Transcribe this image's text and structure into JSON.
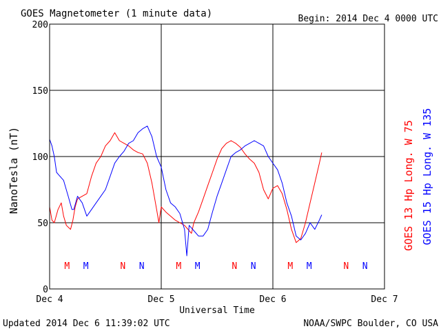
{
  "chart_data": {
    "type": "line",
    "title": "GOES Magnetometer (1 minute data)",
    "begin_label": "Begin:  2014 Dec 4 0000 UTC",
    "xlabel": "Universal Time",
    "ylabel": "NanoTesla (nT)",
    "footer_left": "Updated 2014 Dec  6 11:39:02 UTC",
    "footer_right": "NOAA/SWPC Boulder, CO USA",
    "xlim": [
      0,
      72
    ],
    "ylim": [
      0,
      200
    ],
    "x_unit": "hours since 2014 Dec 4 0000 UTC",
    "x_ticks": [
      {
        "x": 0,
        "label": "Dec 4"
      },
      {
        "x": 24,
        "label": "Dec 5"
      },
      {
        "x": 48,
        "label": "Dec 6"
      },
      {
        "x": 72,
        "label": "Dec 7"
      }
    ],
    "y_ticks": [
      0,
      50,
      100,
      150,
      200
    ],
    "grid": true,
    "series": [
      {
        "name": "GOES 13 Hp  Long. W 75",
        "color": "#ff0000",
        "points": [
          [
            0,
            62
          ],
          [
            0.5,
            52
          ],
          [
            1,
            50
          ],
          [
            1.8,
            60
          ],
          [
            2.5,
            65
          ],
          [
            3,
            55
          ],
          [
            3.6,
            48
          ],
          [
            4.5,
            45
          ],
          [
            5,
            52
          ],
          [
            5.5,
            62
          ],
          [
            6,
            68
          ],
          [
            7,
            70
          ],
          [
            8,
            72
          ],
          [
            9,
            85
          ],
          [
            10,
            95
          ],
          [
            11,
            100
          ],
          [
            12,
            108
          ],
          [
            13,
            112
          ],
          [
            14,
            118
          ],
          [
            15,
            112
          ],
          [
            16,
            110
          ],
          [
            17,
            108
          ],
          [
            18,
            105
          ],
          [
            19,
            103
          ],
          [
            20,
            102
          ],
          [
            21,
            95
          ],
          [
            22,
            80
          ],
          [
            23,
            60
          ],
          [
            23.5,
            50
          ],
          [
            24,
            62
          ],
          [
            25,
            58
          ],
          [
            26,
            55
          ],
          [
            27,
            52
          ],
          [
            28,
            50
          ],
          [
            29,
            48
          ],
          [
            30,
            44
          ],
          [
            30.5,
            42
          ],
          [
            31,
            50
          ],
          [
            32,
            58
          ],
          [
            33,
            68
          ],
          [
            34,
            78
          ],
          [
            35,
            88
          ],
          [
            36,
            98
          ],
          [
            37,
            106
          ],
          [
            38,
            110
          ],
          [
            39,
            112
          ],
          [
            40,
            110
          ],
          [
            41,
            107
          ],
          [
            42,
            102
          ],
          [
            43,
            98
          ],
          [
            44,
            95
          ],
          [
            45,
            88
          ],
          [
            46,
            75
          ],
          [
            47,
            68
          ],
          [
            48,
            76
          ],
          [
            49,
            78
          ],
          [
            50,
            72
          ],
          [
            51,
            60
          ],
          [
            52,
            45
          ],
          [
            53,
            35
          ],
          [
            54,
            38
          ],
          [
            55,
            50
          ],
          [
            56,
            65
          ],
          [
            57,
            80
          ],
          [
            58,
            95
          ],
          [
            58.5,
            103
          ]
        ]
      },
      {
        "name": "GOES 15 Hp  Long. W 135",
        "color": "#0000ff",
        "points": [
          [
            0,
            113
          ],
          [
            0.5,
            108
          ],
          [
            1,
            100
          ],
          [
            1.5,
            88
          ],
          [
            2,
            86
          ],
          [
            3,
            82
          ],
          [
            4,
            70
          ],
          [
            4.8,
            60
          ],
          [
            5.2,
            60
          ],
          [
            6,
            70
          ],
          [
            7,
            65
          ],
          [
            8,
            55
          ],
          [
            9,
            60
          ],
          [
            10,
            65
          ],
          [
            11,
            70
          ],
          [
            12,
            75
          ],
          [
            13,
            85
          ],
          [
            14,
            95
          ],
          [
            15,
            100
          ],
          [
            16,
            104
          ],
          [
            17,
            110
          ],
          [
            18,
            112
          ],
          [
            19,
            118
          ],
          [
            20,
            121
          ],
          [
            21,
            123
          ],
          [
            22,
            115
          ],
          [
            23,
            100
          ],
          [
            24,
            92
          ],
          [
            25,
            75
          ],
          [
            26,
            65
          ],
          [
            27,
            62
          ],
          [
            28,
            57
          ],
          [
            29,
            45
          ],
          [
            29.5,
            25
          ],
          [
            30,
            48
          ],
          [
            31,
            44
          ],
          [
            32,
            40
          ],
          [
            33,
            40
          ],
          [
            34,
            45
          ],
          [
            35,
            58
          ],
          [
            36,
            70
          ],
          [
            37,
            80
          ],
          [
            38,
            90
          ],
          [
            39,
            100
          ],
          [
            40,
            103
          ],
          [
            41,
            105
          ],
          [
            42,
            108
          ],
          [
            43,
            110
          ],
          [
            44,
            112
          ],
          [
            45,
            110
          ],
          [
            46,
            108
          ],
          [
            47,
            100
          ],
          [
            48,
            95
          ],
          [
            49,
            90
          ],
          [
            50,
            80
          ],
          [
            51,
            65
          ],
          [
            52,
            55
          ],
          [
            53,
            40
          ],
          [
            54,
            37
          ],
          [
            55,
            42
          ],
          [
            56,
            50
          ],
          [
            57,
            45
          ],
          [
            58,
            52
          ],
          [
            58.5,
            56
          ]
        ]
      }
    ],
    "markers": [
      {
        "label": "M",
        "x": 3.75,
        "color": "#ff0000"
      },
      {
        "label": "M",
        "x": 7.8,
        "color": "#0000ff"
      },
      {
        "label": "N",
        "x": 15.75,
        "color": "#ff0000"
      },
      {
        "label": "N",
        "x": 19.8,
        "color": "#0000ff"
      },
      {
        "label": "M",
        "x": 27.75,
        "color": "#ff0000"
      },
      {
        "label": "M",
        "x": 31.8,
        "color": "#0000ff"
      },
      {
        "label": "N",
        "x": 39.75,
        "color": "#ff0000"
      },
      {
        "label": "N",
        "x": 43.8,
        "color": "#0000ff"
      },
      {
        "label": "M",
        "x": 51.75,
        "color": "#ff0000"
      },
      {
        "label": "M",
        "x": 55.8,
        "color": "#0000ff"
      },
      {
        "label": "N",
        "x": 63.75,
        "color": "#ff0000"
      },
      {
        "label": "N",
        "x": 67.8,
        "color": "#0000ff"
      }
    ]
  }
}
